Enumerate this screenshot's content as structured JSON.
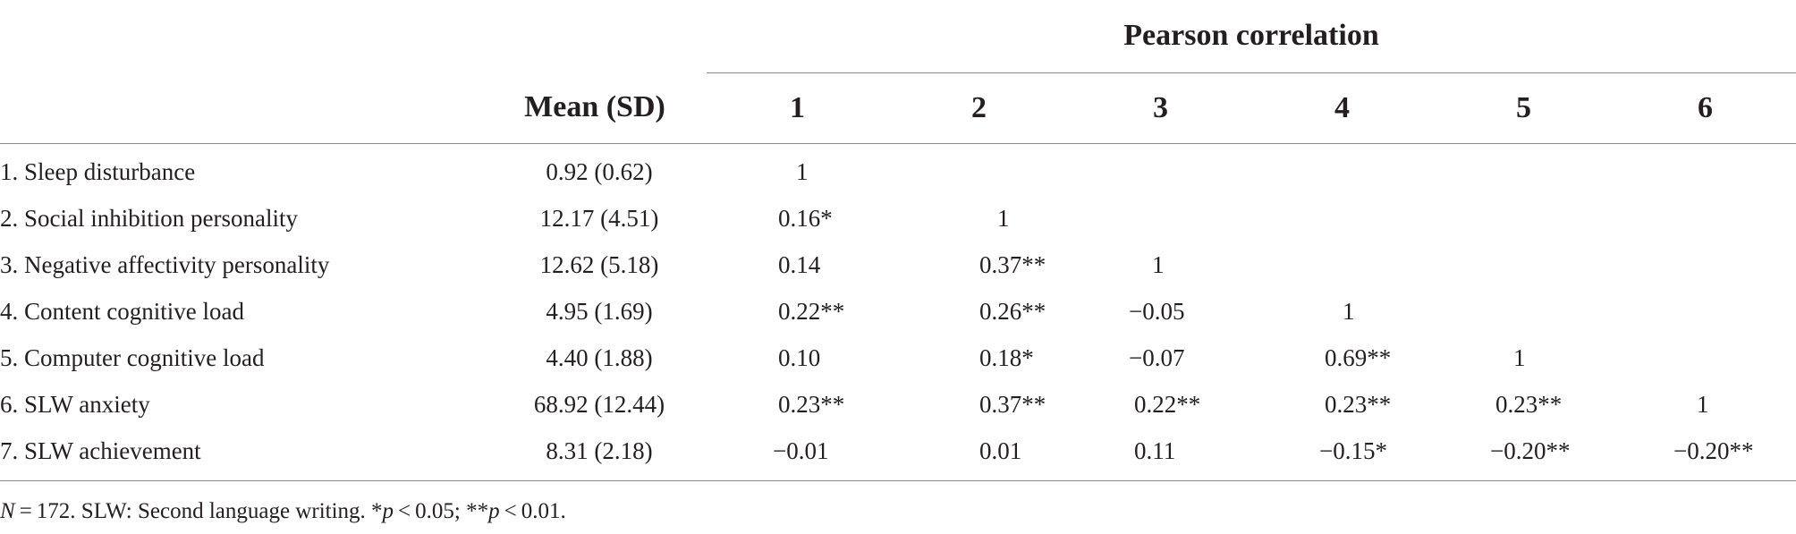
{
  "table": {
    "group_header": "Pearson correlation",
    "mean_header": "Mean (SD)",
    "col_headers": [
      "1",
      "2",
      "3",
      "4",
      "5",
      "6"
    ],
    "rows": [
      {
        "label": "1. Sleep disturbance",
        "mean": "0.92 (0.62)",
        "values": [
          "1",
          "",
          "",
          "",
          "",
          ""
        ]
      },
      {
        "label": "2. Social inhibition personality",
        "mean": "12.17 (4.51)",
        "values": [
          "0.16*",
          "1",
          "",
          "",
          "",
          ""
        ]
      },
      {
        "label": "3. Negative affectivity personality",
        "mean": "12.62 (5.18)",
        "values": [
          "0.14",
          "0.37**",
          "1",
          "",
          "",
          ""
        ]
      },
      {
        "label": "4. Content cognitive load",
        "mean": "4.95 (1.69)",
        "values": [
          "0.22**",
          "0.26**",
          "−0.05",
          "1",
          "",
          ""
        ]
      },
      {
        "label": "5. Computer cognitive load",
        "mean": "4.40 (1.88)",
        "values": [
          "0.10",
          "0.18*",
          "−0.07",
          "0.69**",
          "1",
          ""
        ]
      },
      {
        "label": "6. SLW anxiety",
        "mean": "68.92 (12.44)",
        "values": [
          "0.23**",
          "0.37**",
          "0.22**",
          "0.23**",
          "0.23**",
          "1"
        ]
      },
      {
        "label": "7. SLW achievement",
        "mean": "8.31 (2.18)",
        "values": [
          "−0.01",
          "0.01",
          "0.11",
          "−0.15*",
          "−0.20**",
          "−0.20**"
        ]
      }
    ]
  },
  "note": {
    "n_symbol": "N",
    "n_rest": " = 172. SLW: Second language writing. *",
    "p1_symbol": "p",
    "p1_rest": " < 0.05; **",
    "p2_symbol": "p",
    "p2_rest": " < 0.01."
  }
}
